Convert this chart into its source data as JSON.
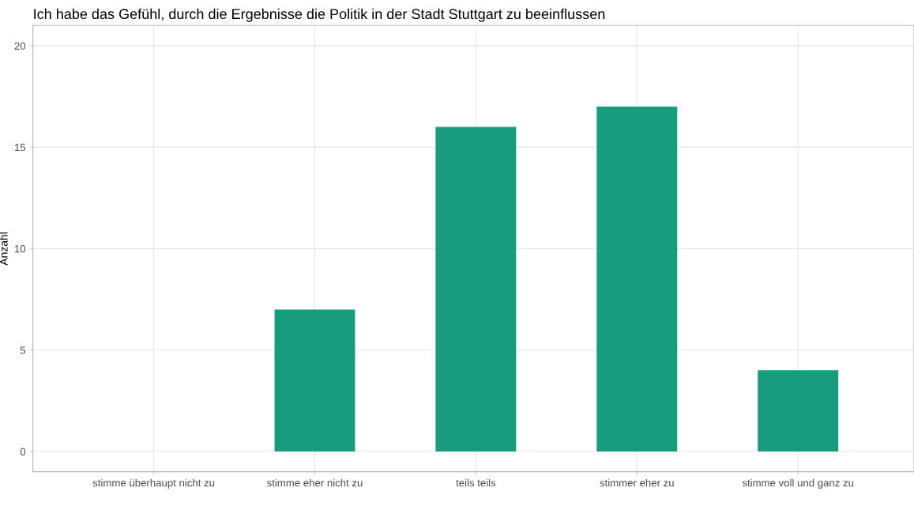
{
  "chart_data": {
    "type": "bar",
    "title": "Ich habe das Gefühl, durch die Ergebnisse die Politik in der Stadt Stuttgart zu beeinflussen",
    "ylabel": "Anzahl",
    "categories": [
      "stimme überhaupt nicht zu",
      "stimme eher nicht zu",
      "teils teils",
      "stimmer eher zu",
      "stimme voll und ganz zu"
    ],
    "values": [
      0,
      7,
      16,
      17,
      4
    ],
    "color": "#179c7d",
    "ylim": [
      -1,
      21
    ],
    "yticks": [
      0,
      5,
      10,
      15,
      20
    ],
    "grid": true
  }
}
